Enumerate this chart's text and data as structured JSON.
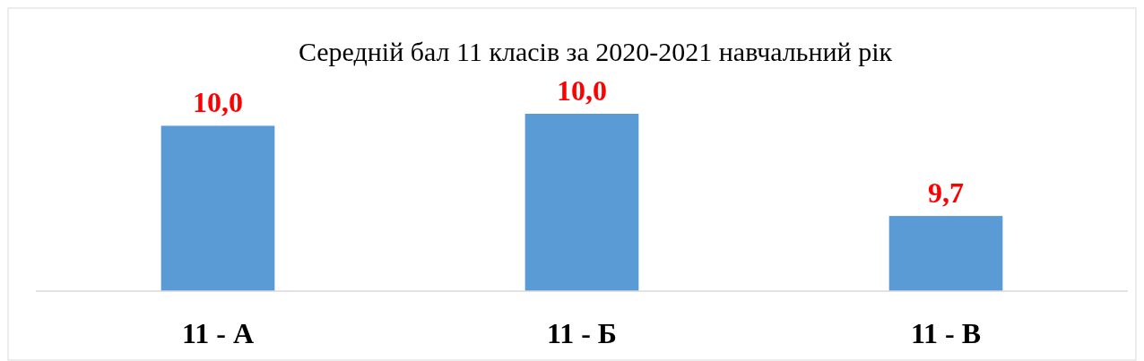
{
  "chart_data": {
    "type": "bar",
    "title": "Середній бал 11 класів  за 2020-2021 навчальний рік",
    "categories": [
      "11 - А",
      "11 - Б",
      "11 - В"
    ],
    "values": [
      10.0,
      10.04,
      9.7
    ],
    "color": "#5b9bd5",
    "ylim": [
      9.45,
      10.04
    ],
    "tick_labels": "x",
    "value_labels": [
      "10,0",
      "10,0",
      "9,7"
    ]
  }
}
